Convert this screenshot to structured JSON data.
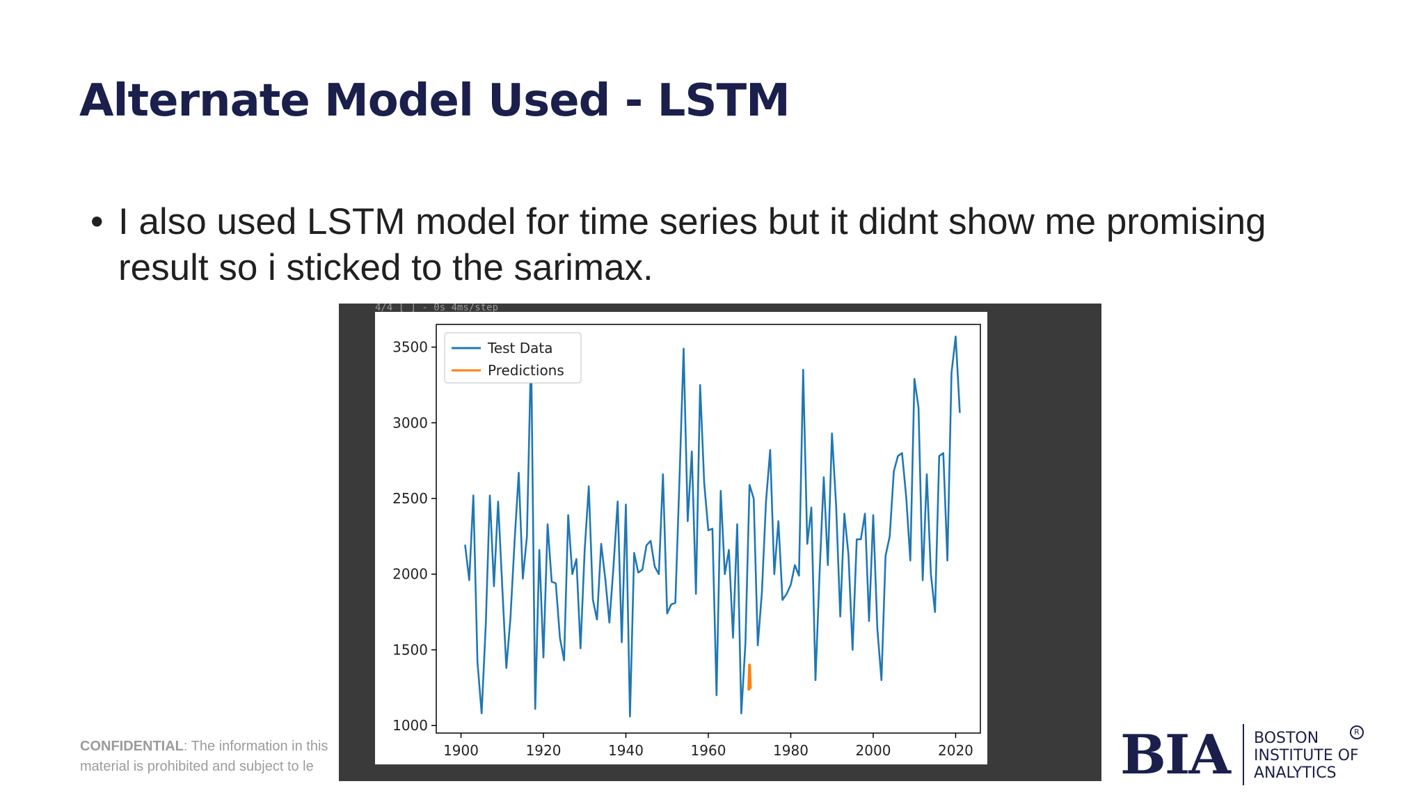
{
  "slide": {
    "title": "Alternate Model Used - LSTM",
    "bullet_marker": "•",
    "bullet_text": "I also used LSTM model for time series but it didnt show me promising result so i sticked to the sarimax."
  },
  "footer": {
    "confidential_label": "CONFIDENTIAL",
    "confidential_line1": ": The information in this",
    "confidential_line2": "material is prohibited and subject to le"
  },
  "logo": {
    "mark": "BIA",
    "words": [
      "BOSTON",
      "INSTITUTE OF",
      "ANALYTICS"
    ],
    "registered": "R"
  },
  "screenshot": {
    "top_strip_text": "4/4 [                                          ] - 0s 4ms/step"
  },
  "chart_data": {
    "type": "line",
    "title": "",
    "xlabel": "",
    "ylabel": "",
    "xlim": [
      1894,
      2026
    ],
    "ylim": [
      950,
      3650
    ],
    "xticks": [
      1900,
      1920,
      1940,
      1960,
      1980,
      2000,
      2020
    ],
    "yticks": [
      1000,
      1500,
      2000,
      2500,
      3000,
      3500
    ],
    "grid": false,
    "legend_position": "top-left",
    "series": [
      {
        "name": "Test Data",
        "color": "#1f77b4",
        "x": [
          1901,
          1902,
          1903,
          1904,
          1905,
          1906,
          1907,
          1908,
          1909,
          1910,
          1911,
          1912,
          1913,
          1914,
          1915,
          1916,
          1917,
          1918,
          1919,
          1920,
          1921,
          1922,
          1923,
          1924,
          1925,
          1926,
          1927,
          1928,
          1929,
          1930,
          1931,
          1932,
          1933,
          1934,
          1935,
          1936,
          1937,
          1938,
          1939,
          1940,
          1941,
          1942,
          1943,
          1944,
          1945,
          1946,
          1947,
          1948,
          1949,
          1950,
          1951,
          1952,
          1953,
          1954,
          1955,
          1956,
          1957,
          1958,
          1959,
          1960,
          1961,
          1962,
          1963,
          1964,
          1965,
          1966,
          1967,
          1968,
          1969,
          1970,
          1971,
          1972,
          1973,
          1974,
          1975,
          1976,
          1977,
          1978,
          1979,
          1980,
          1981,
          1982,
          1983,
          1984,
          1985,
          1986,
          1987,
          1988,
          1989,
          1990,
          1991,
          1992,
          1993,
          1994,
          1995,
          1996,
          1997,
          1998,
          1999,
          2000,
          2001,
          2002,
          2003,
          2004,
          2005,
          2006,
          2007,
          2008,
          2009,
          2010,
          2011,
          2012,
          2013,
          2014,
          2015,
          2016,
          2017,
          2018,
          2019,
          2020,
          2021
        ],
        "y": [
          2190,
          1960,
          2520,
          1420,
          1080,
          1660,
          2520,
          1920,
          2480,
          1920,
          1380,
          1710,
          2220,
          2670,
          1970,
          2250,
          3490,
          1110,
          2160,
          1450,
          2330,
          1950,
          1940,
          1580,
          1430,
          2390,
          2000,
          2100,
          1510,
          2160,
          2580,
          1830,
          1700,
          2200,
          1970,
          1680,
          2050,
          2480,
          1550,
          2460,
          1060,
          2140,
          2010,
          2030,
          2190,
          2220,
          2050,
          2000,
          2660,
          1740,
          1800,
          1810,
          2620,
          3490,
          2350,
          2810,
          1870,
          3250,
          2600,
          2290,
          2300,
          1200,
          2550,
          2000,
          2160,
          1580,
          2330,
          1080,
          1540,
          2590,
          2500,
          1530,
          1880,
          2480,
          2820,
          2000,
          2350,
          1830,
          1870,
          1930,
          2060,
          1990,
          3350,
          2200,
          2440,
          1300,
          2020,
          2640,
          2060,
          2930,
          2450,
          1720,
          2400,
          2130,
          1500,
          2230,
          2230,
          2400,
          1690,
          2390,
          1640,
          1300,
          2120,
          2250,
          2680,
          2780,
          2800,
          2510,
          2090,
          3290,
          3100,
          1960,
          2660,
          2000,
          1750,
          2780,
          2800,
          2090,
          3330,
          3570,
          3070
        ]
      },
      {
        "name": "Predictions",
        "color": "#ff7f0e",
        "x": [
          1969.8,
          1970.0,
          1970.2
        ],
        "y": [
          1240,
          1400,
          1250
        ]
      }
    ]
  }
}
